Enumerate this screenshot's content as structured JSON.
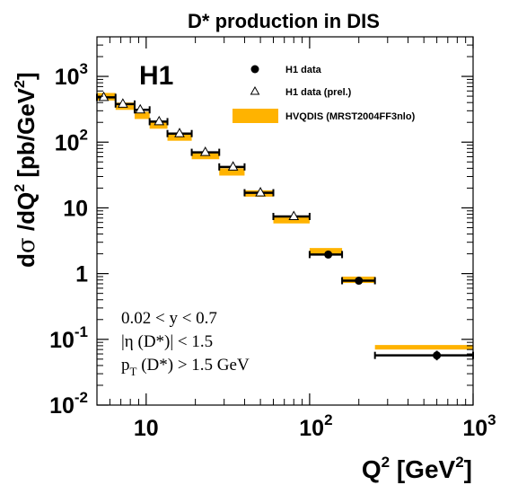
{
  "chart_data": {
    "type": "scatter",
    "title": "D* production in DIS",
    "experiment_label": "H1",
    "xlabel": {
      "base": "Q",
      "sup": "2",
      "unit_open": " [GeV",
      "unit_sup": "2",
      "unit_close": "]"
    },
    "ylabel": {
      "d": "d",
      "sigma": "σ",
      "mid": " /dQ",
      "sup1": "2",
      "unit": " [pb/GeV",
      "sup2": "2",
      "close": "]"
    },
    "x_scale": "log",
    "y_scale": "log",
    "xlim": [
      5,
      1000
    ],
    "ylim": [
      0.01,
      4000
    ],
    "x_ticks": [
      {
        "value": 10,
        "base": "10",
        "exp": ""
      },
      {
        "value": 100,
        "base": "10",
        "exp": "2"
      },
      {
        "value": 1000,
        "base": "10",
        "exp": "3"
      }
    ],
    "y_ticks": [
      {
        "value": 1000,
        "base": "10",
        "exp": "3"
      },
      {
        "value": 100,
        "base": "10",
        "exp": "2"
      },
      {
        "value": 10,
        "base": "10",
        "exp": ""
      },
      {
        "value": 1,
        "base": "1",
        "exp": ""
      },
      {
        "value": 0.1,
        "base": "10",
        "exp": "-1"
      },
      {
        "value": 0.01,
        "base": "10",
        "exp": "-2"
      }
    ],
    "series": [
      {
        "name": "H1 data",
        "marker": "filled-circle",
        "points": [
          {
            "x": 130,
            "xlo": 100,
            "xhi": 158,
            "y": 1.95,
            "ylo": 1.8,
            "yhi": 2.1
          },
          {
            "x": 200,
            "xlo": 158,
            "xhi": 251,
            "y": 0.78,
            "ylo": 0.72,
            "yhi": 0.84
          },
          {
            "x": 600,
            "xlo": 251,
            "xhi": 1000,
            "y": 0.057,
            "ylo": 0.048,
            "yhi": 0.067
          }
        ]
      },
      {
        "name": "H1 data (prel.)",
        "marker": "open-triangle",
        "points": [
          {
            "x": 5.5,
            "xlo": 5.0,
            "xhi": 6.5,
            "y": 480,
            "ylo": 440,
            "yhi": 520
          },
          {
            "x": 7.2,
            "xlo": 6.5,
            "xhi": 8.5,
            "y": 380,
            "ylo": 350,
            "yhi": 410
          },
          {
            "x": 9.2,
            "xlo": 8.5,
            "xhi": 10.5,
            "y": 310,
            "ylo": 285,
            "yhi": 335
          },
          {
            "x": 12,
            "xlo": 10.5,
            "xhi": 13.5,
            "y": 205,
            "ylo": 190,
            "yhi": 220
          },
          {
            "x": 16,
            "xlo": 13.5,
            "xhi": 19,
            "y": 135,
            "ylo": 125,
            "yhi": 145
          },
          {
            "x": 23,
            "xlo": 19,
            "xhi": 28,
            "y": 70,
            "ylo": 65,
            "yhi": 75
          },
          {
            "x": 34,
            "xlo": 28,
            "xhi": 40,
            "y": 42,
            "ylo": 39,
            "yhi": 45
          },
          {
            "x": 50,
            "xlo": 40,
            "xhi": 60,
            "y": 17,
            "ylo": 15.8,
            "yhi": 18.2
          },
          {
            "x": 80,
            "xlo": 60,
            "xhi": 100,
            "y": 7.4,
            "ylo": 6.9,
            "yhi": 7.9
          }
        ]
      },
      {
        "name": "HVQDIS (MRST2004FF3nlo)",
        "marker": "band",
        "color": "#FFB300",
        "bands": [
          {
            "xlo": 5.0,
            "xhi": 6.5,
            "ylo": 430,
            "yhi": 560
          },
          {
            "xlo": 6.5,
            "xhi": 8.5,
            "ylo": 310,
            "yhi": 400
          },
          {
            "xlo": 8.5,
            "xhi": 10.5,
            "ylo": 225,
            "yhi": 290
          },
          {
            "xlo": 10.5,
            "xhi": 13.5,
            "ylo": 160,
            "yhi": 205
          },
          {
            "xlo": 13.5,
            "xhi": 19,
            "ylo": 105,
            "yhi": 135
          },
          {
            "xlo": 19,
            "xhi": 28,
            "ylo": 55,
            "yhi": 70
          },
          {
            "xlo": 28,
            "xhi": 40,
            "ylo": 31,
            "yhi": 40
          },
          {
            "xlo": 40,
            "xhi": 60,
            "ylo": 14.8,
            "yhi": 18.5
          },
          {
            "xlo": 60,
            "xhi": 100,
            "ylo": 5.8,
            "yhi": 7.6
          },
          {
            "xlo": 100,
            "xhi": 158,
            "ylo": 1.95,
            "yhi": 2.45
          },
          {
            "xlo": 158,
            "xhi": 251,
            "ylo": 0.72,
            "yhi": 0.9
          },
          {
            "xlo": 251,
            "xhi": 1000,
            "ylo": 0.07,
            "yhi": 0.082
          }
        ]
      }
    ],
    "legend": {
      "placement": "top-right",
      "items": [
        "H1 data",
        "H1 data (prel.)",
        "HVQDIS (MRST2004FF3nlo)"
      ]
    },
    "cuts": {
      "line1": "0.02 < y < 0.7",
      "line2_a": "|η (D*)| < 1.5",
      "line3_p": "p",
      "line3_sub": "T",
      "line3_rest": " (D*) > 1.5 GeV"
    },
    "grid": false
  }
}
